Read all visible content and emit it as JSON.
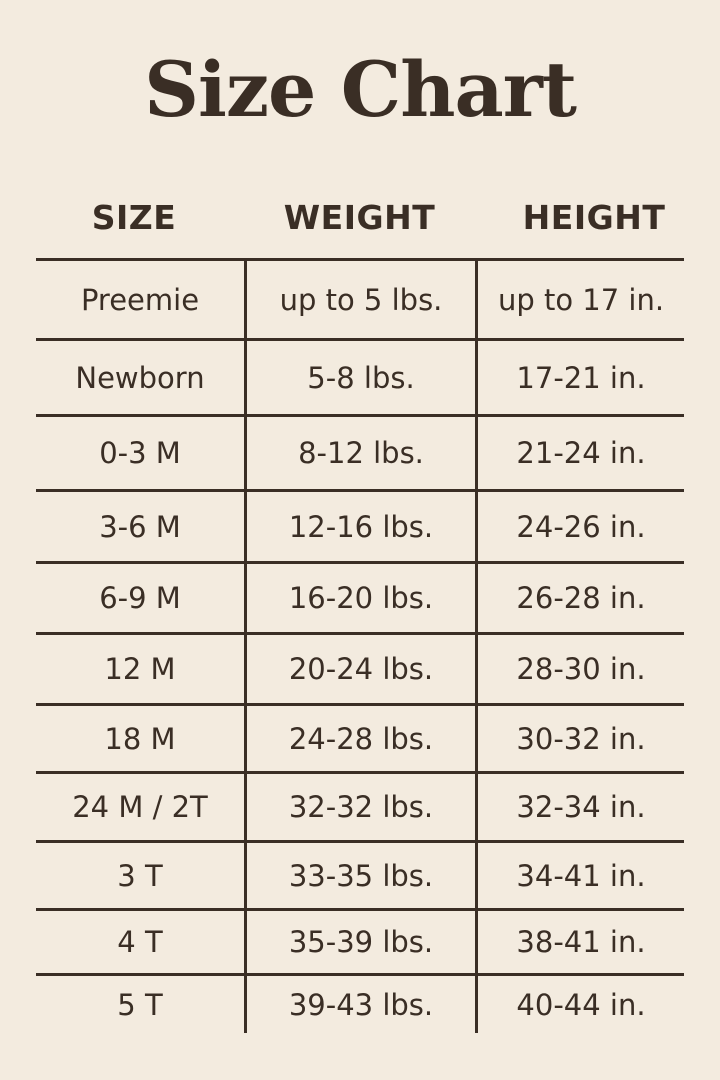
{
  "title": "Size Chart",
  "headers": [
    "SIZE",
    "WEIGHT",
    "HEIGHT"
  ],
  "rows": [
    [
      "Preemie",
      "up to 5 lbs.",
      "up to 17 in."
    ],
    [
      "Newborn",
      "5-8 lbs.",
      "17-21 in."
    ],
    [
      "0-3 M",
      "8-12 lbs.",
      "21-24 in."
    ],
    [
      "3-6 M",
      "12-16 lbs.",
      "24-26 in."
    ],
    [
      "6-9 M",
      "16-20 lbs.",
      "26-28 in."
    ],
    [
      "12 M",
      "20-24 lbs.",
      "28-30 in."
    ],
    [
      "18 M",
      "24-28 lbs.",
      "30-32 in."
    ],
    [
      "24 M / 2T",
      "32-32 lbs.",
      "32-34 in."
    ],
    [
      "3 T",
      "33-35 lbs.",
      "34-41 in."
    ],
    [
      "4 T",
      "35-39 lbs.",
      "38-41 in."
    ],
    [
      "5 T",
      "39-43 lbs.",
      "40-44 in."
    ]
  ],
  "colors": {
    "background": "#f3ebdf",
    "text": "#3a2e25"
  }
}
